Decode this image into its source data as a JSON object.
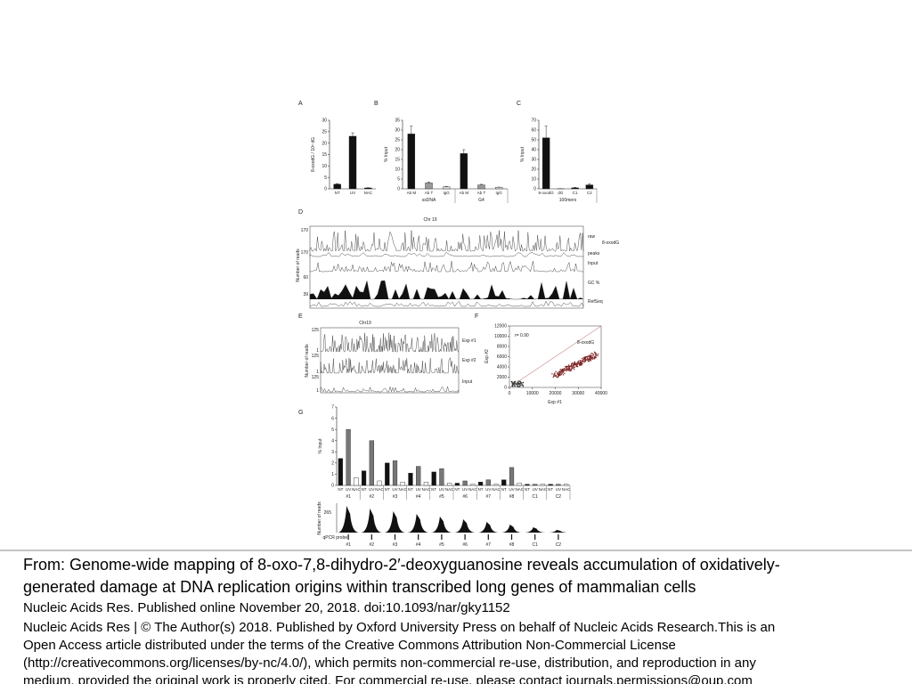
{
  "figure": {
    "panels": [
      {
        "letter": "A",
        "type": "bar",
        "ylabel": "8-oxodG / 10⁶ dG",
        "categories": [
          "NT",
          "UV",
          "NAC"
        ],
        "values": [
          2,
          23,
          0.4
        ],
        "errors": [
          0.3,
          1.5,
          0.1
        ],
        "colors": [
          "#111111"
        ],
        "ylim": [
          0,
          30
        ],
        "yticks": [
          0,
          5,
          10,
          15,
          20,
          25,
          30
        ]
      },
      {
        "letter": "B",
        "type": "bar",
        "ylabel": "% Input",
        "groups": [
          "ssDNA",
          "G4"
        ],
        "categories": [
          "Ab M",
          "Ab T",
          "IgG"
        ],
        "values": [
          28,
          3,
          1,
          18,
          2,
          0.8
        ],
        "errors": [
          4,
          0.5,
          0.2,
          2,
          0.3,
          0.1
        ],
        "colors": [
          "#111111",
          "#999999",
          "#dddddd"
        ],
        "ylim": [
          0,
          35
        ],
        "yticks": [
          0,
          5,
          10,
          15,
          20,
          25,
          30,
          35
        ]
      },
      {
        "letter": "C",
        "type": "bar",
        "ylabel": "% Input",
        "groups": [
          "100mers"
        ],
        "categories": [
          "8-oxodG",
          "dG",
          "C1",
          "C2"
        ],
        "values": [
          52,
          0.1,
          1,
          4
        ],
        "errors": [
          12,
          0.1,
          0.5,
          1
        ],
        "colors": [
          "#111111",
          "#999999",
          "#111111",
          "#111111"
        ],
        "ylim": [
          0,
          70
        ],
        "yticks": [
          0,
          10,
          20,
          30,
          40,
          50,
          60,
          70
        ]
      },
      {
        "letter": "D",
        "type": "tracks",
        "title": "Chr 19",
        "ylabel": "Number of reads",
        "scale_labels": [
          "170",
          "170",
          "60",
          "39"
        ],
        "track_labels": [
          "raw",
          "8-oxodG",
          "peaks",
          "Input",
          "GC %",
          "RefSeq"
        ]
      },
      {
        "letter": "E",
        "type": "tracks",
        "title": "Chr19",
        "ylabel": "Number of reads",
        "scale_labels": [
          "125",
          "1",
          "125",
          "1",
          "125",
          "1"
        ],
        "track_labels": [
          "Exp #1",
          "Exp #2",
          "Input"
        ]
      },
      {
        "letter": "F",
        "type": "scatter",
        "annotation": "r= 0.90",
        "legend": "8-oxodG",
        "xlabel": "Exp #1",
        "ylabel": "Exp #2",
        "xlim": [
          0,
          40000
        ],
        "xticks": [
          0,
          10000,
          20000,
          30000,
          40000
        ],
        "ylim": [
          0,
          12000
        ],
        "yticks": [
          0,
          2000,
          4000,
          6000,
          8000,
          10000,
          12000
        ]
      },
      {
        "letter": "G",
        "type": "bar",
        "ylabel": "% Input",
        "groups": [
          "#1",
          "#2",
          "#3",
          "#4",
          "#5",
          "#6",
          "#7",
          "#8",
          "C1",
          "C2"
        ],
        "categories": [
          "NT",
          "UV",
          "NAC"
        ],
        "values": [
          2.4,
          5,
          0.7,
          1.3,
          4,
          0.4,
          2,
          2.2,
          0.3,
          1.1,
          1.7,
          0.3,
          1.2,
          1.5,
          0.2,
          0.2,
          0.4,
          0.1,
          0.3,
          0.5,
          0.1,
          0.5,
          1.6,
          0.2,
          0.1,
          0.1,
          0.1,
          0.1,
          0.1,
          0.1
        ],
        "colors": [
          "#111111",
          "#777777",
          "#ffffff"
        ],
        "ylim": [
          0,
          7
        ],
        "yticks": [
          0,
          1,
          2,
          3,
          4,
          5,
          6,
          7
        ],
        "reads_label": "Number of reads",
        "reads_scale": "265",
        "probe_label": "qPCR probe"
      }
    ]
  },
  "caption": {
    "lines": [
      "From: Genome-wide mapping of 8-oxo-7,8-dihydro-2′-deoxyguanosine reveals accumulation of oxidatively-",
      "generated damage at DNA replication origins within transcribed long genes of mammalian cells",
      "Nucleic Acids Res. Published online  November 20, 2018. doi:10.1093/nar/gky1152",
      "Nucleic Acids Res | © The Author(s) 2018. Published by Oxford University Press on behalf of Nucleic Acids Research.This is an",
      "Open Access article distributed under the terms of the Creative Commons Attribution Non-Commercial License",
      "(http://creativecommons.org/licenses/by-nc/4.0/), which permits non-commercial re-use, distribution, and reproduction in any",
      "medium, provided the original work is properly cited. For commercial re-use, please contact journals.permissions@oup.com"
    ]
  }
}
